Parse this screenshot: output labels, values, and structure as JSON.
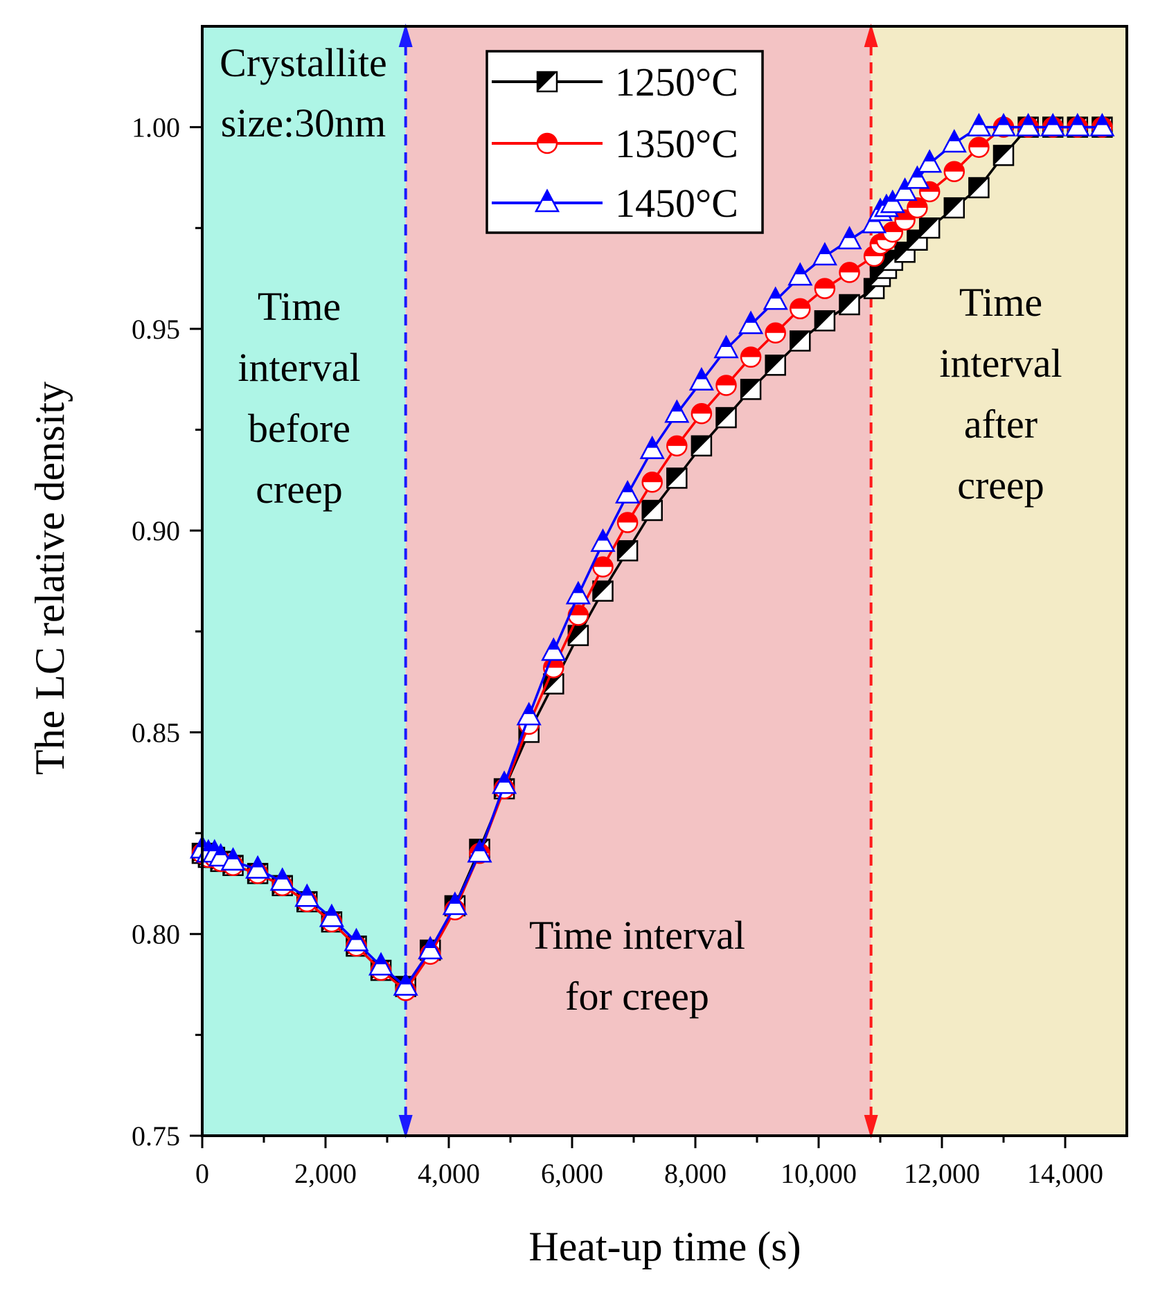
{
  "chart_data": {
    "type": "line",
    "xlabel": "Heat-up time (s)",
    "ylabel": "The LC relative density",
    "xlim": [
      0,
      15000
    ],
    "ylim": [
      0.75,
      1.025
    ],
    "xticks": [
      0,
      2000,
      4000,
      6000,
      8000,
      10000,
      12000,
      14000
    ],
    "xtick_labels": [
      "0",
      "2,000",
      "4,000",
      "6,000",
      "8,000",
      "10,000",
      "12,000",
      "14,000"
    ],
    "yticks": [
      0.75,
      0.8,
      0.85,
      0.9,
      0.95,
      1.0
    ],
    "ytick_labels": [
      "0.75",
      "0.80",
      "0.85",
      "0.90",
      "0.95",
      "1.00"
    ],
    "legend_position": "top-center",
    "regions": [
      {
        "x0": 0,
        "x1": 3300,
        "color": "#aef5e6",
        "label_lines": [
          "Time",
          "interval",
          "before",
          "creep"
        ]
      },
      {
        "x0": 3300,
        "x1": 10850,
        "color": "#f3c3c4",
        "label_lines": [
          "Time interval",
          "for creep"
        ]
      },
      {
        "x0": 10850,
        "x1": 15000,
        "color": "#f3ebc6",
        "label_lines": [
          "Time",
          "interval",
          "after",
          "creep"
        ]
      }
    ],
    "boundaries": [
      {
        "x": 3300,
        "color": "#1a1aff"
      },
      {
        "x": 10850,
        "color": "#ff1a1a"
      }
    ],
    "annotation": {
      "lines": [
        "Crystallite",
        "size:30nm"
      ]
    },
    "series": [
      {
        "name": "1250°C",
        "color": "#000000",
        "marker": "square",
        "x": [
          0,
          100,
          200,
          300,
          500,
          900,
          1300,
          1700,
          2100,
          2500,
          2900,
          3300,
          3700,
          4100,
          4500,
          4900,
          5300,
          5700,
          6100,
          6500,
          6900,
          7300,
          7700,
          8100,
          8500,
          8900,
          9300,
          9700,
          10100,
          10500,
          10900,
          11000,
          11100,
          11200,
          11400,
          11600,
          11800,
          12200,
          12600,
          13000,
          13400,
          13800,
          14200,
          14600
        ],
        "y": [
          0.82,
          0.819,
          0.819,
          0.818,
          0.817,
          0.815,
          0.812,
          0.808,
          0.803,
          0.797,
          0.791,
          0.787,
          0.796,
          0.807,
          0.821,
          0.836,
          0.85,
          0.862,
          0.874,
          0.885,
          0.895,
          0.905,
          0.913,
          0.921,
          0.928,
          0.935,
          0.941,
          0.947,
          0.952,
          0.956,
          0.96,
          0.963,
          0.965,
          0.967,
          0.969,
          0.972,
          0.975,
          0.98,
          0.985,
          0.993,
          1.0,
          1.0,
          1.0,
          1.0
        ]
      },
      {
        "name": "1350°C",
        "color": "#ff0000",
        "marker": "circle",
        "x": [
          0,
          100,
          200,
          300,
          500,
          900,
          1300,
          1700,
          2100,
          2500,
          2900,
          3300,
          3700,
          4100,
          4500,
          4900,
          5300,
          5700,
          6100,
          6500,
          6900,
          7300,
          7700,
          8100,
          8500,
          8900,
          9300,
          9700,
          10100,
          10500,
          10900,
          11000,
          11100,
          11200,
          11400,
          11600,
          11800,
          12200,
          12600,
          13000,
          13400,
          13800,
          14200,
          14600
        ],
        "y": [
          0.82,
          0.819,
          0.819,
          0.818,
          0.817,
          0.815,
          0.812,
          0.808,
          0.803,
          0.797,
          0.791,
          0.786,
          0.795,
          0.806,
          0.82,
          0.836,
          0.852,
          0.866,
          0.879,
          0.891,
          0.902,
          0.912,
          0.921,
          0.929,
          0.936,
          0.943,
          0.949,
          0.955,
          0.96,
          0.964,
          0.968,
          0.971,
          0.972,
          0.974,
          0.977,
          0.98,
          0.984,
          0.989,
          0.995,
          1.0,
          1.0,
          1.0,
          1.0,
          1.0
        ]
      },
      {
        "name": "1450°C",
        "color": "#0000ff",
        "marker": "triangle",
        "x": [
          0,
          100,
          200,
          300,
          500,
          900,
          1300,
          1700,
          2100,
          2500,
          2900,
          3300,
          3700,
          4100,
          4500,
          4900,
          5300,
          5700,
          6100,
          6500,
          6900,
          7300,
          7700,
          8100,
          8500,
          8900,
          9300,
          9700,
          10100,
          10500,
          10900,
          11000,
          11100,
          11200,
          11400,
          11600,
          11800,
          12200,
          12600,
          13000,
          13400,
          13800,
          14200,
          14600
        ],
        "y": [
          0.821,
          0.82,
          0.82,
          0.819,
          0.818,
          0.816,
          0.813,
          0.809,
          0.804,
          0.798,
          0.792,
          0.787,
          0.796,
          0.807,
          0.82,
          0.837,
          0.854,
          0.87,
          0.884,
          0.897,
          0.909,
          0.92,
          0.929,
          0.937,
          0.945,
          0.951,
          0.957,
          0.963,
          0.968,
          0.972,
          0.976,
          0.979,
          0.98,
          0.981,
          0.984,
          0.987,
          0.991,
          0.996,
          1.0,
          1.0,
          1.0,
          1.0,
          1.0,
          1.0
        ]
      }
    ]
  }
}
